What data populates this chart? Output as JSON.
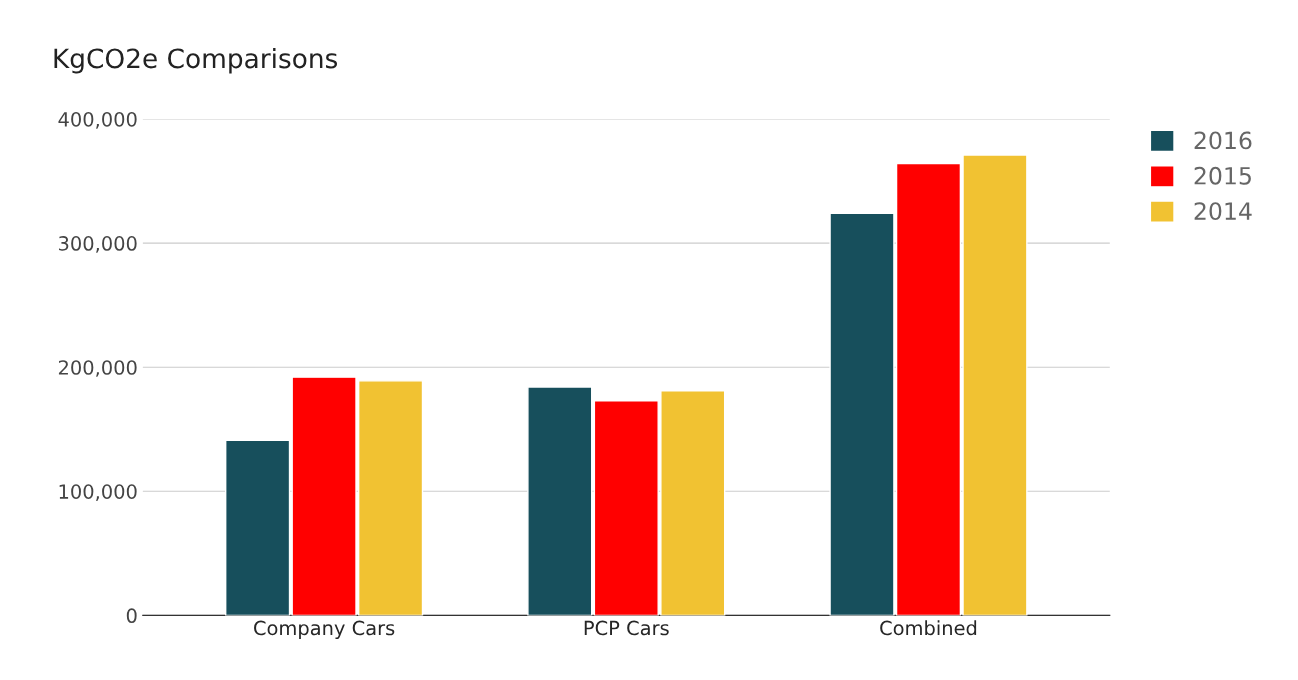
{
  "chart_data": {
    "type": "bar",
    "title": "KgCO2e Comparisons",
    "categories": [
      "Company Cars",
      "PCP Cars",
      "Combined"
    ],
    "series": [
      {
        "name": "2016",
        "color": "#174f5c",
        "values": [
          141000,
          184000,
          324000
        ]
      },
      {
        "name": "2015",
        "color": "#ff0000",
        "values": [
          192000,
          173000,
          364000
        ]
      },
      {
        "name": "2014",
        "color": "#f1c232",
        "values": [
          189000,
          181000,
          371000
        ]
      }
    ],
    "ylim": [
      0,
      400000
    ],
    "yticks": [
      {
        "value": 0,
        "label": "0"
      },
      {
        "value": 100000,
        "label": "100,000"
      },
      {
        "value": 200000,
        "label": "200,000"
      },
      {
        "value": 300000,
        "label": "300,000"
      },
      {
        "value": 400000,
        "label": "400,000"
      }
    ],
    "grid": "y",
    "legend": "top right"
  }
}
